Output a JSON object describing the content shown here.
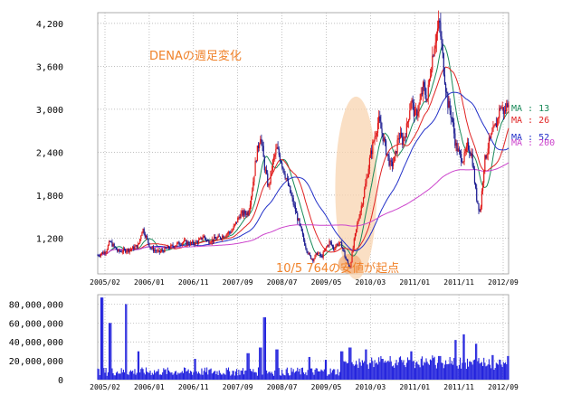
{
  "chart_data": [
    {
      "type": "candlestick",
      "title": "DENAの週足変化",
      "annotation": "10/5  764の安値が起点",
      "ylim": [
        700,
        4350
      ],
      "y_ticks": [
        1200,
        1800,
        2400,
        3000,
        3600,
        4200
      ],
      "y_tick_labels": [
        "1,200",
        "1,800",
        "2,400",
        "3,000",
        "3,600",
        "4,200"
      ],
      "x_tick_labels": [
        "2005/02",
        "2006/01",
        "2006/11",
        "2007/09",
        "2008/07",
        "2009/05",
        "2010/03",
        "2011/01",
        "2011/11",
        "2012/09"
      ],
      "price_path": [
        [
          0,
          960
        ],
        [
          2,
          1020
        ],
        [
          3,
          1150
        ],
        [
          5,
          1010
        ],
        [
          8,
          1040
        ],
        [
          10,
          1100
        ],
        [
          11,
          1340
        ],
        [
          13,
          1060
        ],
        [
          15,
          1000
        ],
        [
          18,
          1080
        ],
        [
          21,
          1150
        ],
        [
          23,
          1120
        ],
        [
          25,
          1160
        ],
        [
          26,
          1230
        ],
        [
          27,
          1150
        ],
        [
          30,
          1210
        ],
        [
          33,
          1300
        ],
        [
          35,
          1530
        ],
        [
          37,
          1560
        ],
        [
          38,
          1900
        ],
        [
          39,
          2350
        ],
        [
          40,
          2650
        ],
        [
          41,
          2200
        ],
        [
          42,
          1900
        ],
        [
          43,
          2250
        ],
        [
          44,
          2450
        ],
        [
          45,
          2300
        ],
        [
          46,
          2100
        ],
        [
          47,
          1900
        ],
        [
          48,
          1700
        ],
        [
          49,
          1500
        ],
        [
          50,
          1300
        ],
        [
          51,
          1100
        ],
        [
          52,
          950
        ],
        [
          53,
          900
        ],
        [
          54,
          1000
        ],
        [
          55,
          930
        ],
        [
          56,
          1050
        ],
        [
          57,
          1150
        ],
        [
          58,
          1050
        ],
        [
          59,
          1130
        ],
        [
          60,
          1100
        ],
        [
          61,
          900
        ],
        [
          62,
          790
        ],
        [
          63,
          1150
        ],
        [
          64,
          1450
        ],
        [
          65,
          1700
        ],
        [
          66,
          2000
        ],
        [
          67,
          2350
        ],
        [
          68,
          2600
        ],
        [
          69,
          2850
        ],
        [
          70,
          2650
        ],
        [
          71,
          2400
        ],
        [
          72,
          2200
        ],
        [
          73,
          2300
        ],
        [
          74,
          2650
        ],
        [
          75,
          2550
        ],
        [
          76,
          2750
        ],
        [
          77,
          3150
        ],
        [
          78,
          2900
        ],
        [
          79,
          3050
        ],
        [
          80,
          3300
        ],
        [
          81,
          3150
        ],
        [
          82,
          3650
        ],
        [
          83,
          4000
        ],
        [
          84,
          4200
        ],
        [
          85,
          3600
        ],
        [
          86,
          3100
        ],
        [
          87,
          2900
        ],
        [
          88,
          2500
        ],
        [
          89,
          2350
        ],
        [
          90,
          2300
        ],
        [
          91,
          2500
        ],
        [
          92,
          2350
        ],
        [
          93,
          1800
        ],
        [
          94,
          1550
        ],
        [
          95,
          2250
        ],
        [
          96,
          2500
        ],
        [
          97,
          2650
        ],
        [
          98,
          2800
        ],
        [
          99,
          3050
        ],
        [
          100,
          2950
        ],
        [
          101,
          3150
        ]
      ],
      "moving_averages": [
        {
          "name": "MA : 13",
          "color": "#1a8a5a"
        },
        {
          "name": "MA : 26",
          "color": "#e02424"
        },
        {
          "name": "MA : 52",
          "color": "#2230c8"
        },
        {
          "name": "MA : 200",
          "color": "#cc44cc"
        }
      ],
      "candle_up_color": "#e01818",
      "candle_down_color": "#1a1a90",
      "highlight_color": "#f8d4b0"
    },
    {
      "type": "bar",
      "series_label": "volume",
      "ylim": [
        0,
        90000000
      ],
      "y_ticks": [
        0,
        20000000,
        40000000,
        60000000,
        80000000
      ],
      "y_tick_labels": [
        "0",
        "20,000,000",
        "40,000,000",
        "60,000,000",
        "80,000,000"
      ],
      "x_tick_labels": [
        "2005/02",
        "2006/01",
        "2006/11",
        "2007/09",
        "2008/07",
        "2009/05",
        "2010/03",
        "2011/01",
        "2011/11",
        "2012/09"
      ],
      "bar_color": "#2222dd",
      "volume_spikes": [
        [
          1,
          87000000
        ],
        [
          3,
          60000000
        ],
        [
          7,
          80000000
        ],
        [
          10,
          30000000
        ],
        [
          24,
          22000000
        ],
        [
          37,
          28000000
        ],
        [
          40,
          34000000
        ],
        [
          41,
          66000000
        ],
        [
          44,
          32000000
        ],
        [
          52,
          24000000
        ],
        [
          56,
          21000000
        ],
        [
          60,
          30000000
        ],
        [
          62,
          34000000
        ],
        [
          66,
          32000000
        ],
        [
          70,
          22000000
        ],
        [
          77,
          30000000
        ],
        [
          84,
          25000000
        ],
        [
          88,
          42000000
        ],
        [
          90,
          48000000
        ],
        [
          93,
          38000000
        ],
        [
          97,
          26000000
        ],
        [
          101,
          25000000
        ]
      ]
    }
  ]
}
